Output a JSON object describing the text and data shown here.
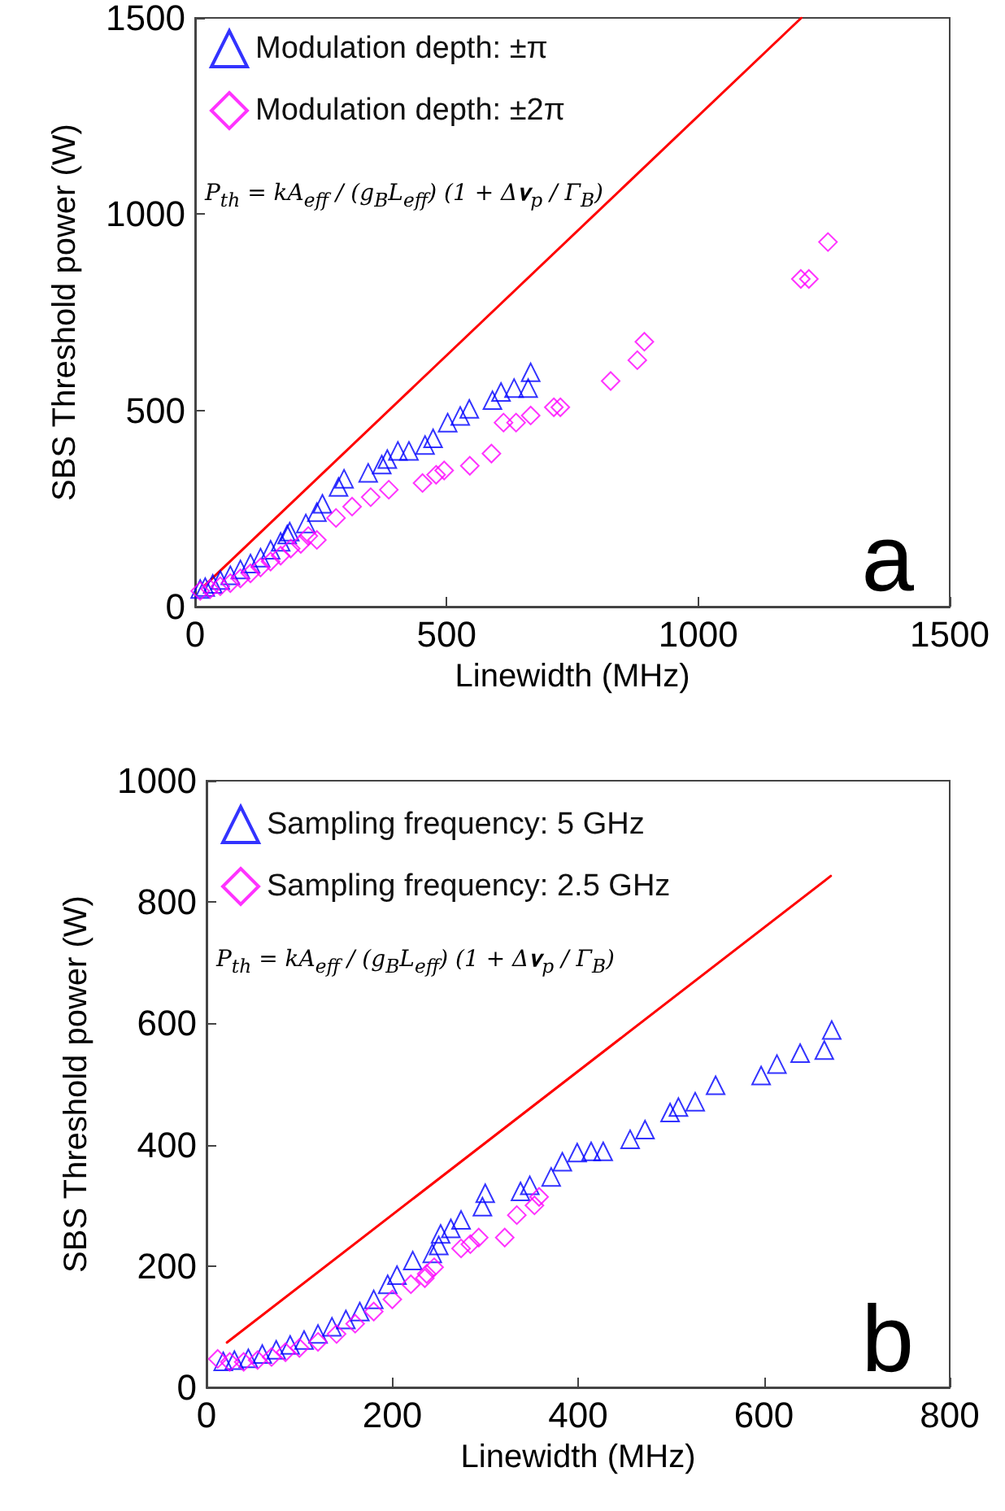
{
  "chart_data": [
    {
      "type": "scatter",
      "xlabel": "Linewidth (MHz)",
      "ylabel": "SBS Threshold power (W)",
      "xlim": [
        0,
        1500
      ],
      "xticks": [
        0,
        500,
        1000,
        1500
      ],
      "ylim": [
        0,
        1500
      ],
      "yticks": [
        0,
        500,
        1000,
        1500
      ],
      "grid": false,
      "legend": "top left",
      "annotations": [
        "P$_{th}$ = kA$_{eff}$ / (g$_{B}$L$_{eff}$) (1 + Δ𝛎$_{p}$ / Γ$_{B}$)",
        "a"
      ],
      "series": [
        {
          "name": "Modulation depth: ±π",
          "color": "#0000ff",
          "marker": "triangle",
          "x": [
            10,
            20,
            35,
            50,
            70,
            90,
            110,
            130,
            150,
            170,
            183,
            188,
            220,
            242,
            253,
            285,
            296,
            344,
            371,
            382,
            403,
            425,
            457,
            473,
            502,
            527,
            545,
            591,
            608,
            634,
            662,
            667
          ],
          "values": [
            45,
            50,
            58,
            68,
            80,
            95,
            110,
            125,
            145,
            165,
            184,
            191,
            212,
            241,
            262,
            305,
            326,
            341,
            362,
            376,
            397,
            397,
            412,
            429,
            469,
            486,
            504,
            526,
            547,
            557,
            557,
            597
          ]
        },
        {
          "name": "Modulation depth: ±2π",
          "color": "#ff00ff",
          "marker": "diamond",
          "x": [
            10,
            30,
            50,
            70,
            90,
            110,
            130,
            150,
            170,
            190,
            210,
            225,
            242,
            280,
            312,
            349,
            385,
            452,
            479,
            495,
            546,
            589,
            613,
            638,
            667,
            713,
            726,
            826,
            879,
            893,
            1204,
            1220,
            1258
          ],
          "values": [
            40,
            45,
            52,
            60,
            72,
            85,
            100,
            115,
            130,
            148,
            160,
            180,
            170,
            226,
            255,
            279,
            298,
            315,
            336,
            347,
            359,
            390,
            469,
            469,
            487,
            508,
            508,
            575,
            628,
            675,
            835,
            835,
            929
          ]
        },
        {
          "type": "line",
          "color": "#ff0000",
          "marker": "none",
          "x": [
            20,
            1205
          ],
          "values": [
            55,
            1500
          ]
        }
      ]
    },
    {
      "type": "scatter",
      "xlabel": "Linewidth (MHz)",
      "ylabel": "SBS Threshold power (W)",
      "xlim": [
        0,
        800
      ],
      "xticks": [
        0,
        200,
        400,
        600,
        800
      ],
      "ylim": [
        0,
        1000
      ],
      "yticks": [
        0,
        200,
        400,
        600,
        800,
        1000
      ],
      "grid": false,
      "legend": "top left",
      "annotations": [
        "P$_{th}$ = kA$_{eff}$ / (g$_{B}$L$_{eff}$) (1 + Δ𝛎$_{p}$ / Γ$_{B}$)",
        "b"
      ],
      "series": [
        {
          "name": "Sampling frequency: 5 GHz",
          "color": "#0000ff",
          "marker": "triangle",
          "x": [
            18,
            30,
            45,
            60,
            75,
            90,
            105,
            120,
            135,
            150,
            165,
            180,
            195,
            205,
            222,
            243,
            250,
            252,
            263,
            274,
            297,
            300,
            338,
            348,
            371,
            383,
            399,
            414,
            427,
            456,
            472,
            499,
            508,
            526,
            548,
            597,
            614,
            639,
            665,
            673
          ],
          "values": [
            43,
            45,
            48,
            55,
            62,
            70,
            78,
            88,
            100,
            112,
            125,
            145,
            170,
            185,
            209,
            221,
            234,
            253,
            262,
            276,
            298,
            320,
            323,
            333,
            347,
            372,
            387,
            389,
            389,
            409,
            425,
            453,
            462,
            471,
            498,
            514,
            533,
            551,
            556,
            589
          ]
        },
        {
          "name": "Sampling frequency: 2.5 GHz",
          "color": "#ff00ff",
          "marker": "diamond",
          "x": [
            12,
            25,
            40,
            55,
            70,
            85,
            100,
            120,
            140,
            160,
            180,
            200,
            220,
            235,
            237,
            245,
            274,
            284,
            293,
            321,
            334,
            353,
            358
          ],
          "values": [
            47,
            42,
            42,
            45,
            50,
            58,
            65,
            75,
            88,
            105,
            125,
            145,
            170,
            180,
            187,
            198,
            229,
            236,
            247,
            247,
            284,
            300,
            314
          ]
        },
        {
          "type": "line",
          "color": "#ff0000",
          "marker": "none",
          "x": [
            22,
            672
          ],
          "values": [
            74,
            843
          ]
        }
      ]
    }
  ]
}
